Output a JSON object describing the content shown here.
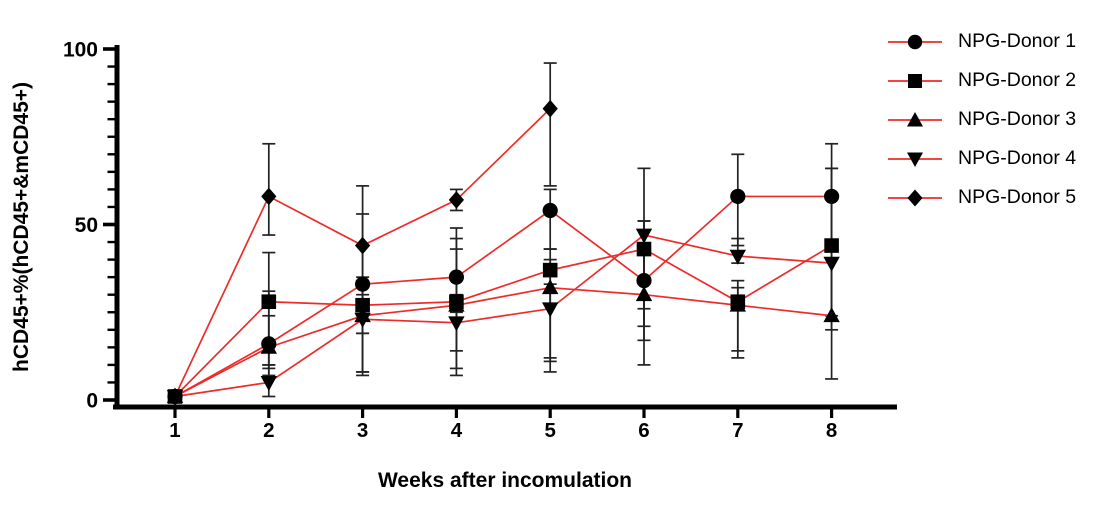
{
  "figure": {
    "background": "#ffffff",
    "accent_red": "#ed2c2a",
    "marker_black": "#000000",
    "errorbar_color": "#222222"
  },
  "chart_data": {
    "type": "line",
    "title": "",
    "xlabel": "Weeks after incomulation",
    "ylabel": "hCD45+%(hCD45+&mCD45+)",
    "x_ticks": [
      1,
      2,
      3,
      4,
      5,
      6,
      7,
      8
    ],
    "y_ticks_major": [
      0,
      50,
      100
    ],
    "y_minor_step": 5,
    "xlim": [
      0.4,
      8.7
    ],
    "ylim": [
      0,
      100
    ],
    "grid": false,
    "legend_position": "right-top",
    "line_color": "#ed2c2a",
    "marker_color": "#000000",
    "series": [
      {
        "name": "NPG-Donor 1",
        "marker": "circle",
        "weeks": [
          1,
          2,
          3,
          4,
          5,
          6,
          7,
          8
        ],
        "values": [
          1,
          16,
          33,
          35,
          54,
          34,
          58,
          58
        ],
        "err_up": [
          0,
          26,
          20,
          14,
          6,
          17,
          12,
          15
        ],
        "err_down": [
          0,
          7,
          14,
          10,
          11,
          17,
          14,
          13
        ]
      },
      {
        "name": "NPG-Donor 2",
        "marker": "square",
        "weeks": [
          1,
          2,
          3,
          4,
          5,
          6,
          7,
          8
        ],
        "values": [
          1,
          28,
          27,
          28,
          37,
          43,
          28,
          44
        ],
        "err_up": [
          0,
          3,
          8,
          18,
          6,
          8,
          6,
          22
        ],
        "err_down": [
          0,
          18,
          20,
          21,
          25,
          22,
          14,
          20
        ]
      },
      {
        "name": "NPG-Donor 3",
        "marker": "triangle-up",
        "weeks": [
          1,
          2,
          3,
          4,
          5,
          6,
          7,
          8
        ],
        "values": [
          1,
          15,
          24,
          27,
          32,
          30,
          27,
          24
        ],
        "err_up": [
          0,
          9,
          9,
          16,
          8,
          14,
          5,
          16
        ],
        "err_down": [
          0,
          8,
          16,
          18,
          21,
          20,
          15,
          18
        ]
      },
      {
        "name": "NPG-Donor 4",
        "marker": "triangle-down",
        "weeks": [
          1,
          2,
          3,
          4,
          5,
          6,
          7,
          8
        ],
        "values": [
          1,
          5,
          23,
          22,
          26,
          47,
          41,
          39
        ],
        "err_up": [
          0,
          5,
          7,
          8,
          7,
          19,
          5,
          27
        ],
        "err_down": [
          0,
          4,
          15,
          8,
          18,
          21,
          2,
          19
        ]
      },
      {
        "name": "NPG-Donor 5",
        "marker": "diamond",
        "weeks": [
          1,
          2,
          3,
          4,
          5
        ],
        "values": [
          1,
          58,
          44,
          57,
          83
        ],
        "err_up": [
          0,
          15,
          17,
          3,
          13
        ],
        "err_down": [
          0,
          11,
          25,
          3,
          22
        ]
      }
    ]
  },
  "legend": {
    "items": [
      {
        "label": "NPG-Donor 1",
        "marker": "circle"
      },
      {
        "label": "NPG-Donor 2",
        "marker": "square"
      },
      {
        "label": "NPG-Donor 3",
        "marker": "triangle-up"
      },
      {
        "label": "NPG-Donor 4",
        "marker": "triangle-down"
      },
      {
        "label": "NPG-Donor 5",
        "marker": "diamond"
      }
    ]
  }
}
